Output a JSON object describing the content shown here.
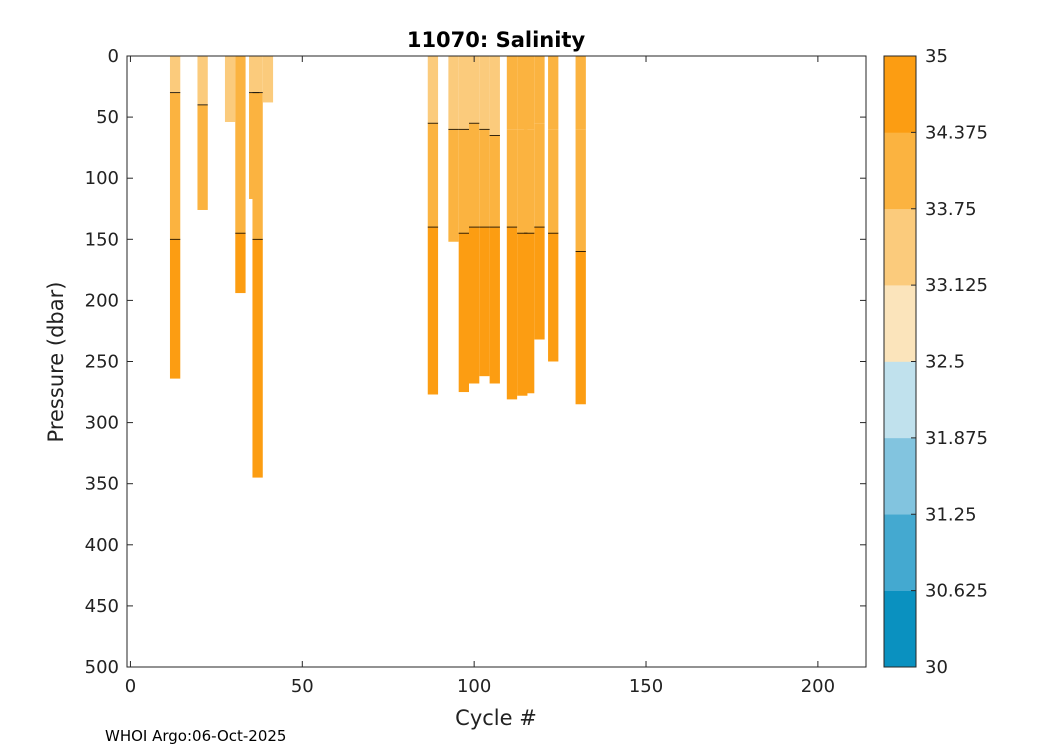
{
  "chart_data": {
    "type": "heatmap",
    "title": "11070:  Salinity",
    "xlabel": "Cycle #",
    "ylabel": "Pressure (dbar)",
    "xlim": [
      -1,
      214
    ],
    "ylim": [
      0,
      500
    ],
    "y_reversed": true,
    "x_ticks": [
      0,
      50,
      100,
      150,
      200
    ],
    "y_ticks": [
      0,
      50,
      100,
      150,
      200,
      250,
      300,
      350,
      400,
      450,
      500
    ],
    "colorbar": {
      "levels": [
        30,
        30.625,
        31.25,
        31.875,
        32.5,
        33.125,
        33.75,
        34.375,
        35
      ],
      "tick_labels": [
        "30",
        "30.625",
        "31.25",
        "31.875",
        "32.5",
        "33.125",
        "33.75",
        "34.375",
        "35"
      ],
      "colors": [
        "#0a91c0",
        "#44a9d0",
        "#82c4df",
        "#c0e1ed",
        "#fbe4bb",
        "#fbcb7c",
        "#fbb340",
        "#fc9d12"
      ]
    },
    "profiles": [
      {
        "cycle": 13,
        "depth": 264,
        "bands": [
          [
            0,
            30,
            33.4
          ],
          [
            30,
            150,
            33.9
          ],
          [
            150,
            264,
            34.6
          ]
        ]
      },
      {
        "cycle": 21,
        "depth": 126,
        "bands": [
          [
            0,
            40,
            33.4
          ],
          [
            40,
            126,
            33.9
          ]
        ]
      },
      {
        "cycle": 29,
        "depth": 54,
        "bands": [
          [
            0,
            54,
            33.4
          ]
        ]
      },
      {
        "cycle": 32,
        "depth": 194,
        "bands": [
          [
            0,
            145,
            33.9
          ],
          [
            145,
            194,
            34.6
          ]
        ]
      },
      {
        "cycle": 36,
        "depth": 117,
        "bands": [
          [
            0,
            30,
            33.4
          ],
          [
            30,
            117,
            33.9
          ]
        ]
      },
      {
        "cycle": 37,
        "depth": 345,
        "bands": [
          [
            0,
            30,
            33.4
          ],
          [
            30,
            150,
            33.9
          ],
          [
            150,
            345,
            34.6
          ]
        ]
      },
      {
        "cycle": 40,
        "depth": 38,
        "bands": [
          [
            0,
            38,
            33.4
          ]
        ]
      },
      {
        "cycle": 88,
        "depth": 277,
        "bands": [
          [
            0,
            55,
            33.4
          ],
          [
            55,
            140,
            33.9
          ],
          [
            140,
            277,
            34.6
          ]
        ]
      },
      {
        "cycle": 94,
        "depth": 152,
        "bands": [
          [
            0,
            60,
            33.4
          ],
          [
            60,
            152,
            33.9
          ]
        ]
      },
      {
        "cycle": 97,
        "depth": 275,
        "bands": [
          [
            0,
            60,
            33.4
          ],
          [
            60,
            145,
            33.9
          ],
          [
            145,
            275,
            34.6
          ]
        ]
      },
      {
        "cycle": 100,
        "depth": 268,
        "bands": [
          [
            0,
            55,
            33.4
          ],
          [
            55,
            140,
            33.9
          ],
          [
            140,
            268,
            34.6
          ]
        ]
      },
      {
        "cycle": 103,
        "depth": 262,
        "bands": [
          [
            0,
            60,
            33.4
          ],
          [
            60,
            140,
            33.9
          ],
          [
            140,
            262,
            34.6
          ]
        ]
      },
      {
        "cycle": 106,
        "depth": 268,
        "bands": [
          [
            0,
            65,
            33.4
          ],
          [
            65,
            140,
            33.9
          ],
          [
            140,
            268,
            34.6
          ]
        ]
      },
      {
        "cycle": 111,
        "depth": 281,
        "bands": [
          [
            0,
            60,
            33.9
          ],
          [
            60,
            140,
            33.9
          ],
          [
            140,
            281,
            34.6
          ]
        ]
      },
      {
        "cycle": 114,
        "depth": 278,
        "bands": [
          [
            0,
            60,
            33.9
          ],
          [
            60,
            145,
            33.9
          ],
          [
            145,
            278,
            34.6
          ]
        ]
      },
      {
        "cycle": 116,
        "depth": 276,
        "bands": [
          [
            0,
            60,
            33.9
          ],
          [
            60,
            145,
            33.9
          ],
          [
            145,
            276,
            34.6
          ]
        ]
      },
      {
        "cycle": 119,
        "depth": 232,
        "bands": [
          [
            0,
            55,
            33.9
          ],
          [
            55,
            140,
            33.9
          ],
          [
            140,
            232,
            34.6
          ]
        ]
      },
      {
        "cycle": 123,
        "depth": 250,
        "bands": [
          [
            0,
            60,
            33.9
          ],
          [
            60,
            145,
            33.9
          ],
          [
            145,
            250,
            34.6
          ]
        ]
      },
      {
        "cycle": 131,
        "depth": 285,
        "bands": [
          [
            0,
            60,
            33.9
          ],
          [
            60,
            160,
            33.9
          ],
          [
            160,
            285,
            34.6
          ]
        ]
      }
    ]
  },
  "footer": "WHOI Argo:06-Oct-2025"
}
